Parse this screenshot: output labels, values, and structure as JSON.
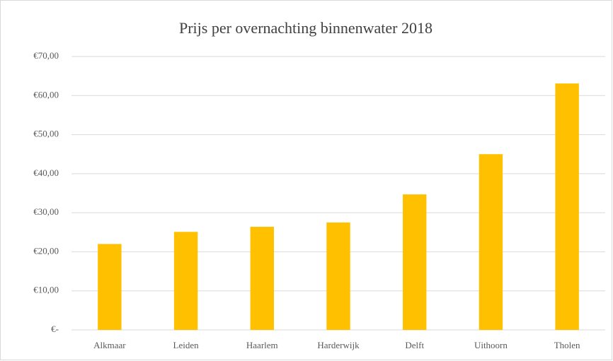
{
  "chart_data": {
    "type": "bar",
    "title": "Prijs per overnachting binnenwater 2018",
    "categories": [
      "Alkmaar",
      "Leiden",
      "Haarlem",
      "Harderwijk",
      "Delft",
      "Uithoorn",
      "Tholen"
    ],
    "values": [
      22,
      25.1,
      26.4,
      27.5,
      34.7,
      45,
      63.1
    ],
    "color": "#ffc000",
    "ylim": [
      0,
      70
    ],
    "yticks": [
      {
        "value": 0,
        "label": "€-"
      },
      {
        "value": 10,
        "label": "€10,00"
      },
      {
        "value": 20,
        "label": "€20,00"
      },
      {
        "value": 30,
        "label": "€30,00"
      },
      {
        "value": 40,
        "label": "€40,00"
      },
      {
        "value": 50,
        "label": "€50,00"
      },
      {
        "value": 60,
        "label": "€60,00"
      },
      {
        "value": 70,
        "label": "€70,00"
      }
    ],
    "grid": true
  }
}
